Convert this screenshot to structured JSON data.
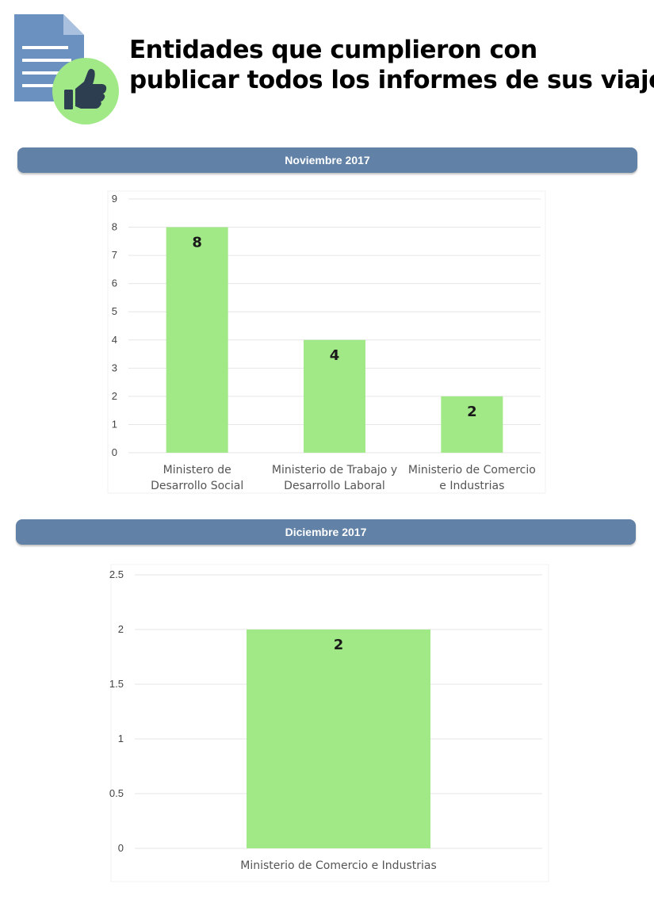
{
  "header": {
    "title_line1": "Entidades que cumplieron con",
    "title_line2": "publicar todos los informes de sus viajes",
    "icon": "document-thumbs-up-icon"
  },
  "colors": {
    "bar": "#a1e887",
    "section_bar": "#6181a6",
    "doc_icon": "#6a91c0",
    "thumb_circle": "#a1e887",
    "thumb": "#2c3e50",
    "grid": "#e6e6e6"
  },
  "sections": {
    "nov_label": "Noviembre 2017",
    "dic_label": "Diciembre 2017"
  },
  "chart_data": [
    {
      "type": "bar",
      "title": "Noviembre 2017",
      "categories": [
        [
          "Ministero de",
          "Desarrollo Social"
        ],
        [
          "Ministerio de Trabajo y",
          "Desarrollo Laboral"
        ],
        [
          "Ministerio de Comercio",
          "e Industrias"
        ]
      ],
      "values": [
        8,
        4,
        2
      ],
      "data_labels": [
        "8",
        "4",
        "2"
      ],
      "yticks": [
        "0",
        "1",
        "2",
        "3",
        "4",
        "5",
        "6",
        "7",
        "8",
        "9"
      ],
      "ylim": [
        0,
        9
      ],
      "grid": true,
      "legend": "none"
    },
    {
      "type": "bar",
      "title": "Diciembre 2017",
      "categories": [
        [
          "Ministerio de Comercio e Industrias"
        ]
      ],
      "values": [
        2
      ],
      "data_labels": [
        "2"
      ],
      "yticks": [
        "0",
        "0.5",
        "1",
        "1.5",
        "2",
        "2.5"
      ],
      "ylim": [
        0,
        2.5
      ],
      "grid": true,
      "legend": "none"
    }
  ]
}
